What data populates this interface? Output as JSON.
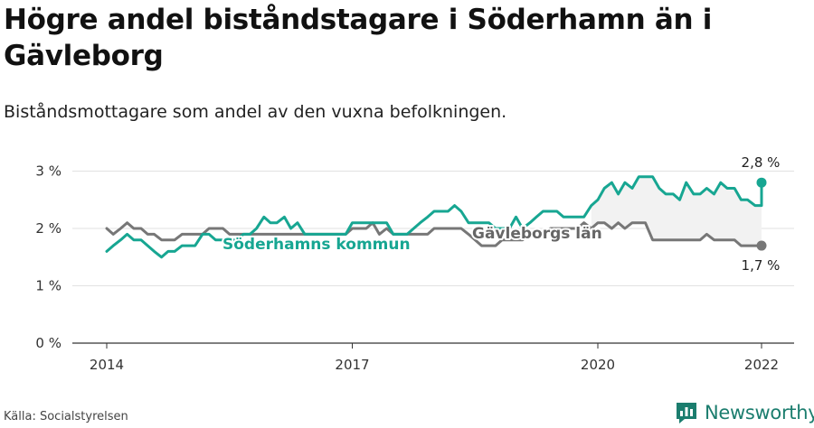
{
  "title": "Högre andel biståndstagare i Söderhamn än i Gävleborg",
  "subtitle": "Biståndsmottagare som andel av den vuxna befolkningen.",
  "source": "Källa: Socialstyrelsen",
  "brand": "Newsworthy",
  "colors": {
    "soderhamn": "#17a692",
    "gavleborg": "#777777",
    "brand": "#1b7d6e",
    "grid": "#e2e2e2"
  },
  "chart_data": {
    "type": "line",
    "x_ticks": [
      "2014",
      "2017",
      "2020",
      "2022"
    ],
    "y_ticks": [
      "0 %",
      "1 %",
      "2 %",
      "3 %"
    ],
    "ylim": [
      0,
      3.4
    ],
    "xlim": [
      2014,
      2022
    ],
    "series": [
      {
        "name": "Söderhamns kommun",
        "end_label": "2,8 %",
        "points": [
          [
            2014.0,
            1.6
          ],
          [
            2014.08,
            1.7
          ],
          [
            2014.17,
            1.8
          ],
          [
            2014.25,
            1.9
          ],
          [
            2014.33,
            1.8
          ],
          [
            2014.42,
            1.8
          ],
          [
            2014.5,
            1.7
          ],
          [
            2014.58,
            1.6
          ],
          [
            2014.67,
            1.5
          ],
          [
            2014.75,
            1.6
          ],
          [
            2014.83,
            1.6
          ],
          [
            2014.92,
            1.7
          ],
          [
            2015.0,
            1.7
          ],
          [
            2015.08,
            1.7
          ],
          [
            2015.17,
            1.9
          ],
          [
            2015.25,
            1.9
          ],
          [
            2015.33,
            1.8
          ],
          [
            2015.42,
            1.8
          ],
          [
            2015.5,
            1.8
          ],
          [
            2015.58,
            1.8
          ],
          [
            2015.67,
            1.9
          ],
          [
            2015.75,
            1.9
          ],
          [
            2015.83,
            2.0
          ],
          [
            2015.92,
            2.2
          ],
          [
            2016.0,
            2.1
          ],
          [
            2016.08,
            2.1
          ],
          [
            2016.17,
            2.2
          ],
          [
            2016.25,
            2.0
          ],
          [
            2016.33,
            2.1
          ],
          [
            2016.42,
            1.9
          ],
          [
            2016.5,
            1.9
          ],
          [
            2016.58,
            1.9
          ],
          [
            2016.67,
            1.9
          ],
          [
            2016.75,
            1.9
          ],
          [
            2016.83,
            1.9
          ],
          [
            2016.92,
            1.9
          ],
          [
            2017.0,
            2.1
          ],
          [
            2017.08,
            2.1
          ],
          [
            2017.17,
            2.1
          ],
          [
            2017.25,
            2.1
          ],
          [
            2017.33,
            2.1
          ],
          [
            2017.42,
            2.1
          ],
          [
            2017.5,
            1.9
          ],
          [
            2017.58,
            1.9
          ],
          [
            2017.67,
            1.9
          ],
          [
            2017.75,
            2.0
          ],
          [
            2017.83,
            2.1
          ],
          [
            2017.92,
            2.2
          ],
          [
            2018.0,
            2.3
          ],
          [
            2018.08,
            2.3
          ],
          [
            2018.17,
            2.3
          ],
          [
            2018.25,
            2.4
          ],
          [
            2018.33,
            2.3
          ],
          [
            2018.42,
            2.1
          ],
          [
            2018.5,
            2.1
          ],
          [
            2018.58,
            2.1
          ],
          [
            2018.67,
            2.1
          ],
          [
            2018.75,
            2.0
          ],
          [
            2018.83,
            2.0
          ],
          [
            2018.92,
            2.0
          ],
          [
            2019.0,
            2.2
          ],
          [
            2019.08,
            2.0
          ],
          [
            2019.17,
            2.1
          ],
          [
            2019.25,
            2.2
          ],
          [
            2019.33,
            2.3
          ],
          [
            2019.42,
            2.3
          ],
          [
            2019.5,
            2.3
          ],
          [
            2019.58,
            2.2
          ],
          [
            2019.67,
            2.2
          ],
          [
            2019.75,
            2.2
          ],
          [
            2019.83,
            2.2
          ],
          [
            2019.92,
            2.4
          ],
          [
            2020.0,
            2.5
          ],
          [
            2020.08,
            2.7
          ],
          [
            2020.17,
            2.8
          ],
          [
            2020.25,
            2.6
          ],
          [
            2020.33,
            2.8
          ],
          [
            2020.42,
            2.7
          ],
          [
            2020.5,
            2.9
          ],
          [
            2020.58,
            2.9
          ],
          [
            2020.67,
            2.9
          ],
          [
            2020.75,
            2.7
          ],
          [
            2020.83,
            2.6
          ],
          [
            2020.92,
            2.6
          ],
          [
            2021.0,
            2.5
          ],
          [
            2021.08,
            2.8
          ],
          [
            2021.17,
            2.6
          ],
          [
            2021.25,
            2.6
          ],
          [
            2021.33,
            2.7
          ],
          [
            2021.42,
            2.6
          ],
          [
            2021.5,
            2.8
          ],
          [
            2021.58,
            2.7
          ],
          [
            2021.67,
            2.7
          ],
          [
            2021.75,
            2.5
          ],
          [
            2021.83,
            2.5
          ],
          [
            2021.92,
            2.4
          ],
          [
            2022.0,
            2.4
          ],
          [
            2022.0,
            2.8
          ]
        ]
      },
      {
        "name": "Gävleborgs län",
        "end_label": "1,7 %",
        "points": [
          [
            2014.0,
            2.0
          ],
          [
            2014.08,
            1.9
          ],
          [
            2014.17,
            2.0
          ],
          [
            2014.25,
            2.1
          ],
          [
            2014.33,
            2.0
          ],
          [
            2014.42,
            2.0
          ],
          [
            2014.5,
            1.9
          ],
          [
            2014.58,
            1.9
          ],
          [
            2014.67,
            1.8
          ],
          [
            2014.75,
            1.8
          ],
          [
            2014.83,
            1.8
          ],
          [
            2014.92,
            1.9
          ],
          [
            2015.0,
            1.9
          ],
          [
            2015.08,
            1.9
          ],
          [
            2015.17,
            1.9
          ],
          [
            2015.25,
            2.0
          ],
          [
            2015.33,
            2.0
          ],
          [
            2015.42,
            2.0
          ],
          [
            2015.5,
            1.9
          ],
          [
            2015.58,
            1.9
          ],
          [
            2015.67,
            1.9
          ],
          [
            2015.75,
            1.9
          ],
          [
            2015.83,
            1.9
          ],
          [
            2015.92,
            1.9
          ],
          [
            2016.0,
            1.9
          ],
          [
            2016.08,
            1.9
          ],
          [
            2016.17,
            1.9
          ],
          [
            2016.25,
            1.9
          ],
          [
            2016.33,
            1.9
          ],
          [
            2016.42,
            1.9
          ],
          [
            2016.5,
            1.9
          ],
          [
            2016.58,
            1.9
          ],
          [
            2016.67,
            1.9
          ],
          [
            2016.75,
            1.9
          ],
          [
            2016.83,
            1.9
          ],
          [
            2016.92,
            1.9
          ],
          [
            2017.0,
            2.0
          ],
          [
            2017.08,
            2.0
          ],
          [
            2017.17,
            2.0
          ],
          [
            2017.25,
            2.1
          ],
          [
            2017.33,
            1.9
          ],
          [
            2017.42,
            2.0
          ],
          [
            2017.5,
            1.9
          ],
          [
            2017.58,
            1.9
          ],
          [
            2017.67,
            1.9
          ],
          [
            2017.75,
            1.9
          ],
          [
            2017.83,
            1.9
          ],
          [
            2017.92,
            1.9
          ],
          [
            2018.0,
            2.0
          ],
          [
            2018.08,
            2.0
          ],
          [
            2018.17,
            2.0
          ],
          [
            2018.25,
            2.0
          ],
          [
            2018.33,
            2.0
          ],
          [
            2018.42,
            1.9
          ],
          [
            2018.5,
            1.8
          ],
          [
            2018.58,
            1.7
          ],
          [
            2018.67,
            1.7
          ],
          [
            2018.75,
            1.7
          ],
          [
            2018.83,
            1.8
          ],
          [
            2018.92,
            1.8
          ],
          [
            2019.0,
            1.8
          ],
          [
            2019.08,
            1.8
          ],
          [
            2019.17,
            1.9
          ],
          [
            2019.25,
            1.9
          ],
          [
            2019.33,
            1.9
          ],
          [
            2019.42,
            2.0
          ],
          [
            2019.5,
            2.0
          ],
          [
            2019.58,
            2.0
          ],
          [
            2019.67,
            2.0
          ],
          [
            2019.75,
            2.0
          ],
          [
            2019.83,
            2.1
          ],
          [
            2019.92,
            2.0
          ],
          [
            2020.0,
            2.1
          ],
          [
            2020.08,
            2.1
          ],
          [
            2020.17,
            2.0
          ],
          [
            2020.25,
            2.1
          ],
          [
            2020.33,
            2.0
          ],
          [
            2020.42,
            2.1
          ],
          [
            2020.5,
            2.1
          ],
          [
            2020.58,
            2.1
          ],
          [
            2020.67,
            1.8
          ],
          [
            2020.75,
            1.8
          ],
          [
            2020.83,
            1.8
          ],
          [
            2020.92,
            1.8
          ],
          [
            2021.0,
            1.8
          ],
          [
            2021.08,
            1.8
          ],
          [
            2021.17,
            1.8
          ],
          [
            2021.25,
            1.8
          ],
          [
            2021.33,
            1.9
          ],
          [
            2021.42,
            1.8
          ],
          [
            2021.5,
            1.8
          ],
          [
            2021.58,
            1.8
          ],
          [
            2021.67,
            1.8
          ],
          [
            2021.75,
            1.7
          ],
          [
            2021.83,
            1.7
          ],
          [
            2021.92,
            1.7
          ],
          [
            2022.0,
            1.7
          ]
        ]
      }
    ]
  }
}
